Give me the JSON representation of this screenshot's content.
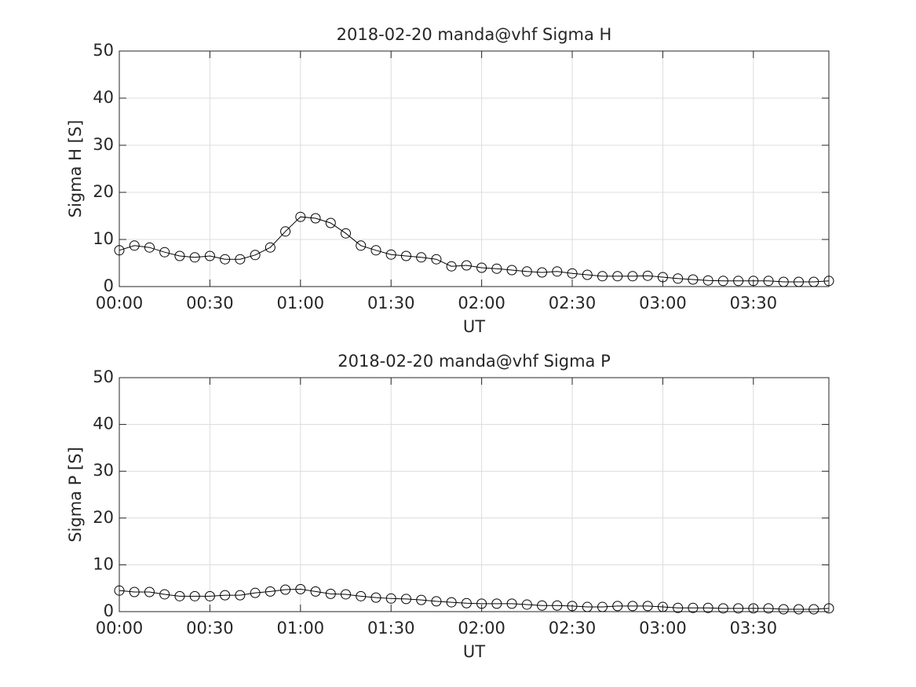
{
  "chart_data": [
    {
      "type": "line",
      "title": "2018-02-20  manda@vhf Sigma H",
      "xlabel": "UT",
      "ylabel": "Sigma H [S]",
      "x": [
        "00:00",
        "00:05",
        "00:10",
        "00:15",
        "00:20",
        "00:25",
        "00:30",
        "00:35",
        "00:40",
        "00:45",
        "00:50",
        "00:55",
        "01:00",
        "01:05",
        "01:10",
        "01:15",
        "01:20",
        "01:25",
        "01:30",
        "01:35",
        "01:40",
        "01:45",
        "01:50",
        "01:55",
        "02:00",
        "02:05",
        "02:10",
        "02:15",
        "02:20",
        "02:25",
        "02:30",
        "02:35",
        "02:40",
        "02:45",
        "02:50",
        "02:55",
        "03:00",
        "03:05",
        "03:10",
        "03:15",
        "03:20",
        "03:25",
        "03:30",
        "03:35",
        "03:40",
        "03:45",
        "03:50",
        "03:55"
      ],
      "series": [
        {
          "color": "#000000",
          "marker": "circle",
          "values": [
            7.7,
            8.7,
            8.3,
            7.3,
            6.5,
            6.2,
            6.5,
            5.8,
            5.8,
            6.7,
            8.3,
            11.7,
            14.8,
            14.5,
            13.5,
            11.3,
            8.7,
            7.7,
            6.8,
            6.5,
            6.2,
            5.8,
            4.3,
            4.5,
            4.0,
            3.8,
            3.5,
            3.2,
            3.0,
            3.2,
            2.8,
            2.5,
            2.2,
            2.2,
            2.2,
            2.3,
            2.0,
            1.7,
            1.5,
            1.3,
            1.2,
            1.2,
            1.2,
            1.2,
            1.0,
            1.0,
            1.0,
            1.2
          ]
        }
      ],
      "xlim": [
        "00:00",
        "03:55"
      ],
      "xticks": [
        "00:00",
        "00:30",
        "01:00",
        "01:30",
        "02:00",
        "02:30",
        "03:00",
        "03:30"
      ],
      "ylim": [
        0,
        50
      ],
      "yticks": [
        0,
        10,
        20,
        30,
        40,
        50
      ],
      "grid": true
    },
    {
      "type": "line",
      "title": "2018-02-20  manda@vhf Sigma P",
      "xlabel": "UT",
      "ylabel": "Sigma P [S]",
      "x": [
        "00:00",
        "00:05",
        "00:10",
        "00:15",
        "00:20",
        "00:25",
        "00:30",
        "00:35",
        "00:40",
        "00:45",
        "00:50",
        "00:55",
        "01:00",
        "01:05",
        "01:10",
        "01:15",
        "01:20",
        "01:25",
        "01:30",
        "01:35",
        "01:40",
        "01:45",
        "01:50",
        "01:55",
        "02:00",
        "02:05",
        "02:10",
        "02:15",
        "02:20",
        "02:25",
        "02:30",
        "02:35",
        "02:40",
        "02:45",
        "02:50",
        "02:55",
        "03:00",
        "03:05",
        "03:10",
        "03:15",
        "03:20",
        "03:25",
        "03:30",
        "03:35",
        "03:40",
        "03:45",
        "03:50",
        "03:55"
      ],
      "series": [
        {
          "color": "#000000",
          "marker": "circle",
          "values": [
            4.5,
            4.2,
            4.2,
            3.7,
            3.3,
            3.3,
            3.3,
            3.5,
            3.5,
            4.0,
            4.3,
            4.7,
            4.8,
            4.3,
            3.8,
            3.7,
            3.3,
            3.0,
            2.8,
            2.7,
            2.5,
            2.2,
            2.0,
            1.8,
            1.7,
            1.7,
            1.7,
            1.5,
            1.3,
            1.3,
            1.2,
            1.0,
            1.0,
            1.2,
            1.2,
            1.2,
            1.0,
            0.8,
            0.8,
            0.8,
            0.7,
            0.7,
            0.7,
            0.7,
            0.5,
            0.5,
            0.5,
            0.7
          ]
        }
      ],
      "xlim": [
        "00:00",
        "03:55"
      ],
      "xticks": [
        "00:00",
        "00:30",
        "01:00",
        "01:30",
        "02:00",
        "02:30",
        "03:00",
        "03:30"
      ],
      "ylim": [
        0,
        50
      ],
      "yticks": [
        0,
        10,
        20,
        30,
        40,
        50
      ],
      "grid": true
    }
  ]
}
